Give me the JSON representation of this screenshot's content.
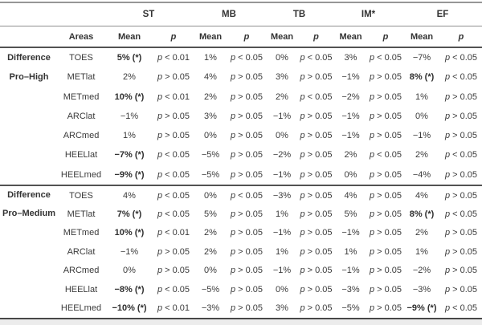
{
  "colors": {
    "text": "#3b3b3b",
    "rule_light": "#8f8f8f",
    "rule_dark": "#525252",
    "background": "#ffffff",
    "footer_strip": "#ececec"
  },
  "table": {
    "p_symbol": "p",
    "group_columns": [
      {
        "label": "ST"
      },
      {
        "label": "MB"
      },
      {
        "label": "TB"
      },
      {
        "label": "IM*"
      },
      {
        "label": "EF"
      }
    ],
    "subheaders": {
      "areas": "Areas",
      "mean": "Mean"
    },
    "row_groups": [
      {
        "label_lines": [
          "Difference",
          "Pro–High"
        ],
        "rows": [
          {
            "area": "TOES",
            "cells": [
              {
                "mean": "5% (*)",
                "sig": true,
                "p": "< 0.01"
              },
              {
                "mean": "1%",
                "sig": false,
                "p": "< 0.05"
              },
              {
                "mean": "0%",
                "sig": false,
                "p": "< 0.05"
              },
              {
                "mean": "3%",
                "sig": false,
                "p": "< 0.05"
              },
              {
                "mean": "−7%",
                "sig": false,
                "p": "< 0.05"
              }
            ]
          },
          {
            "area": "METlat",
            "cells": [
              {
                "mean": "2%",
                "sig": false,
                "p": "> 0.05"
              },
              {
                "mean": "4%",
                "sig": false,
                "p": "> 0.05"
              },
              {
                "mean": "3%",
                "sig": false,
                "p": "> 0.05"
              },
              {
                "mean": "−1%",
                "sig": false,
                "p": "> 0.05"
              },
              {
                "mean": "8% (*)",
                "sig": true,
                "p": "< 0.05"
              }
            ]
          },
          {
            "area": "METmed",
            "cells": [
              {
                "mean": "10% (*)",
                "sig": true,
                "p": "< 0.01"
              },
              {
                "mean": "2%",
                "sig": false,
                "p": "> 0.05"
              },
              {
                "mean": "2%",
                "sig": false,
                "p": "< 0.05"
              },
              {
                "mean": "−2%",
                "sig": false,
                "p": "> 0.05"
              },
              {
                "mean": "1%",
                "sig": false,
                "p": "> 0.05"
              }
            ]
          },
          {
            "area": "ARClat",
            "cells": [
              {
                "mean": "−1%",
                "sig": false,
                "p": "> 0.05"
              },
              {
                "mean": "3%",
                "sig": false,
                "p": "> 0.05"
              },
              {
                "mean": "−1%",
                "sig": false,
                "p": "> 0.05"
              },
              {
                "mean": "−1%",
                "sig": false,
                "p": "> 0.05"
              },
              {
                "mean": "0%",
                "sig": false,
                "p": "> 0.05"
              }
            ]
          },
          {
            "area": "ARCmed",
            "cells": [
              {
                "mean": "1%",
                "sig": false,
                "p": "> 0.05"
              },
              {
                "mean": "0%",
                "sig": false,
                "p": "> 0.05"
              },
              {
                "mean": "0%",
                "sig": false,
                "p": "> 0.05"
              },
              {
                "mean": "−1%",
                "sig": false,
                "p": "> 0.05"
              },
              {
                "mean": "−1%",
                "sig": false,
                "p": "> 0.05"
              }
            ]
          },
          {
            "area": "HEELlat",
            "cells": [
              {
                "mean": "−7% (*)",
                "sig": true,
                "p": "< 0.05"
              },
              {
                "mean": "−5%",
                "sig": false,
                "p": "> 0.05"
              },
              {
                "mean": "−2%",
                "sig": false,
                "p": "> 0.05"
              },
              {
                "mean": "2%",
                "sig": false,
                "p": "< 0.05"
              },
              {
                "mean": "2%",
                "sig": false,
                "p": "< 0.05"
              }
            ]
          },
          {
            "area": "HEELmed",
            "cells": [
              {
                "mean": "−9% (*)",
                "sig": true,
                "p": "< 0.05"
              },
              {
                "mean": "−5%",
                "sig": false,
                "p": "> 0.05"
              },
              {
                "mean": "−1%",
                "sig": false,
                "p": "> 0.05"
              },
              {
                "mean": "0%",
                "sig": false,
                "p": "> 0.05"
              },
              {
                "mean": "−4%",
                "sig": false,
                "p": "> 0.05"
              }
            ]
          }
        ]
      },
      {
        "label_lines": [
          "Difference",
          "Pro–Medium"
        ],
        "rows": [
          {
            "area": "TOES",
            "cells": [
              {
                "mean": "4%",
                "sig": false,
                "p": "< 0.05"
              },
              {
                "mean": "0%",
                "sig": false,
                "p": "< 0.05"
              },
              {
                "mean": "−3%",
                "sig": false,
                "p": "> 0.05"
              },
              {
                "mean": "4%",
                "sig": false,
                "p": "> 0.05"
              },
              {
                "mean": "4%",
                "sig": false,
                "p": "> 0.05"
              }
            ]
          },
          {
            "area": "METlat",
            "cells": [
              {
                "mean": "7% (*)",
                "sig": true,
                "p": "< 0.05"
              },
              {
                "mean": "5%",
                "sig": false,
                "p": "> 0.05"
              },
              {
                "mean": "1%",
                "sig": false,
                "p": "> 0.05"
              },
              {
                "mean": "5%",
                "sig": false,
                "p": "> 0.05"
              },
              {
                "mean": "8% (*)",
                "sig": true,
                "p": "< 0.05"
              }
            ]
          },
          {
            "area": "METmed",
            "cells": [
              {
                "mean": "10% (*)",
                "sig": true,
                "p": "< 0.01"
              },
              {
                "mean": "2%",
                "sig": false,
                "p": "> 0.05"
              },
              {
                "mean": "−1%",
                "sig": false,
                "p": "> 0.05"
              },
              {
                "mean": "−1%",
                "sig": false,
                "p": "> 0.05"
              },
              {
                "mean": "2%",
                "sig": false,
                "p": "> 0.05"
              }
            ]
          },
          {
            "area": "ARClat",
            "cells": [
              {
                "mean": "−1%",
                "sig": false,
                "p": "> 0.05"
              },
              {
                "mean": "2%",
                "sig": false,
                "p": "> 0.05"
              },
              {
                "mean": "1%",
                "sig": false,
                "p": "> 0.05"
              },
              {
                "mean": "1%",
                "sig": false,
                "p": "> 0.05"
              },
              {
                "mean": "1%",
                "sig": false,
                "p": "> 0.05"
              }
            ]
          },
          {
            "area": "ARCmed",
            "cells": [
              {
                "mean": "0%",
                "sig": false,
                "p": "> 0.05"
              },
              {
                "mean": "0%",
                "sig": false,
                "p": "> 0.05"
              },
              {
                "mean": "−1%",
                "sig": false,
                "p": "> 0.05"
              },
              {
                "mean": "−1%",
                "sig": false,
                "p": "> 0.05"
              },
              {
                "mean": "−2%",
                "sig": false,
                "p": "> 0.05"
              }
            ]
          },
          {
            "area": "HEELlat",
            "cells": [
              {
                "mean": "−8% (*)",
                "sig": true,
                "p": "< 0.05"
              },
              {
                "mean": "−5%",
                "sig": false,
                "p": "> 0.05"
              },
              {
                "mean": "0%",
                "sig": false,
                "p": "> 0.05"
              },
              {
                "mean": "−3%",
                "sig": false,
                "p": "> 0.05"
              },
              {
                "mean": "−3%",
                "sig": false,
                "p": "> 0.05"
              }
            ]
          },
          {
            "area": "HEELmed",
            "cells": [
              {
                "mean": "−10% (*)",
                "sig": true,
                "p": "< 0.01"
              },
              {
                "mean": "−3%",
                "sig": false,
                "p": "> 0.05"
              },
              {
                "mean": "3%",
                "sig": false,
                "p": "> 0.05"
              },
              {
                "mean": "−5%",
                "sig": false,
                "p": "> 0.05"
              },
              {
                "mean": "−9% (*)",
                "sig": true,
                "p": "< 0.05"
              }
            ]
          }
        ]
      }
    ]
  }
}
